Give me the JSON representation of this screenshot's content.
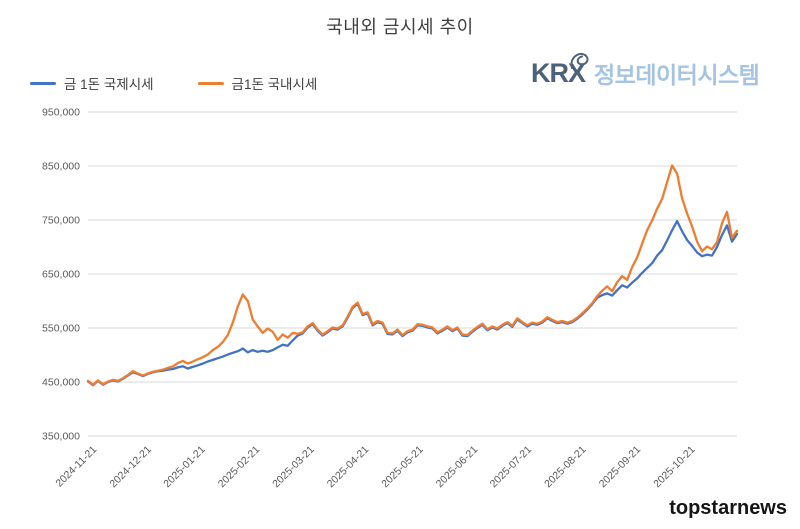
{
  "title": "국내외 금시세 추이",
  "legend": {
    "items": [
      {
        "label": "금 1돈 국제시세",
        "color": "#4472C4"
      },
      {
        "label": "금1돈 국내시세",
        "color": "#ED7D31"
      }
    ]
  },
  "logo": {
    "brand": "KRX",
    "suffix": "정보데이터시스템",
    "brand_color": "#4e617a",
    "suffix_color": "#a5c4e1",
    "loop_icon": "krx-ribbon-loop"
  },
  "watermark": "topstarnews",
  "chart_data": {
    "type": "line",
    "title": "국내외 금시세 추이",
    "xlabel": "",
    "ylabel": "",
    "ylim": [
      350000,
      950000
    ],
    "grid": "horizontal",
    "grid_color": "#d9d9d9",
    "legend_position": "top-left",
    "y_ticks": [
      950000,
      850000,
      750000,
      650000,
      550000,
      450000,
      350000
    ],
    "y_tick_labels": [
      "950,000",
      "850,000",
      "750,000",
      "650,000",
      "550,000",
      "450,000",
      "350,000"
    ],
    "x_tick_labels": [
      "2024-11-21",
      "2024-12-21",
      "2025-01-21",
      "2025-02-21",
      "2025-03-21",
      "2025-04-21",
      "2025-05-21",
      "2025-06-21",
      "2025-07-21",
      "2025-08-21",
      "2025-09-21",
      "2025-10-21"
    ],
    "x_tick_positions": [
      0.008,
      0.092,
      0.175,
      0.259,
      0.343,
      0.427,
      0.511,
      0.595,
      0.678,
      0.762,
      0.846,
      0.93
    ],
    "value_unit": "KRW",
    "series": [
      {
        "name": "금 1돈 국제시세",
        "color": "#4472C4",
        "values": [
          451000,
          444000,
          452000,
          445000,
          450000,
          453000,
          451000,
          456000,
          462000,
          468000,
          465000,
          461000,
          465000,
          468000,
          470000,
          471000,
          473000,
          474000,
          477000,
          479000,
          475000,
          478000,
          481000,
          484000,
          488000,
          491000,
          494000,
          497000,
          501000,
          504000,
          507000,
          512000,
          505000,
          509000,
          506000,
          508000,
          506000,
          509000,
          514000,
          519000,
          517000,
          527000,
          536000,
          540000,
          551000,
          557000,
          545000,
          536000,
          542000,
          549000,
          547000,
          553000,
          569000,
          587000,
          595000,
          574000,
          577000,
          555000,
          561000,
          558000,
          539000,
          538000,
          545000,
          535000,
          542000,
          545000,
          555000,
          554000,
          551000,
          549000,
          540000,
          545000,
          551000,
          544000,
          549000,
          536000,
          535000,
          543000,
          550000,
          556000,
          546000,
          551000,
          547000,
          554000,
          559000,
          552000,
          566000,
          559000,
          553000,
          558000,
          556000,
          560000,
          568000,
          563000,
          559000,
          561000,
          558000,
          561000,
          567000,
          575000,
          584000,
          594000,
          606000,
          611000,
          614000,
          610000,
          620000,
          629000,
          625000,
          634000,
          642000,
          652000,
          661000,
          670000,
          684000,
          694000,
          712000,
          731000,
          748000,
          729000,
          713000,
          702000,
          690000,
          683000,
          686000,
          684000,
          700000,
          722000,
          740000,
          710000,
          724000
        ]
      },
      {
        "name": "금1돈 국내시세",
        "color": "#ED7D31",
        "values": [
          452000,
          445000,
          453000,
          446000,
          451000,
          454000,
          452000,
          457000,
          463000,
          470000,
          466000,
          462000,
          466000,
          469000,
          471000,
          473000,
          476000,
          479000,
          485000,
          489000,
          484000,
          488000,
          492000,
          496000,
          501000,
          509000,
          515000,
          524000,
          537000,
          560000,
          590000,
          612000,
          600000,
          566000,
          553000,
          541000,
          549000,
          543000,
          528000,
          538000,
          532000,
          541000,
          539000,
          542000,
          553000,
          559000,
          547000,
          538000,
          544000,
          551000,
          549000,
          555000,
          571000,
          589000,
          597000,
          576000,
          579000,
          557000,
          563000,
          560000,
          541000,
          540000,
          547000,
          537000,
          544000,
          547000,
          557000,
          556000,
          553000,
          551000,
          542000,
          547000,
          553000,
          546000,
          551000,
          538000,
          537000,
          545000,
          552000,
          558000,
          548000,
          553000,
          549000,
          556000,
          561000,
          554000,
          568000,
          561000,
          555000,
          560000,
          558000,
          562000,
          570000,
          565000,
          561000,
          563000,
          560000,
          563000,
          569000,
          577000,
          586000,
          596000,
          609000,
          619000,
          627000,
          618000,
          635000,
          646000,
          639000,
          663000,
          681000,
          706000,
          731000,
          749000,
          771000,
          789000,
          820000,
          851000,
          836000,
          790000,
          762000,
          738000,
          710000,
          692000,
          701000,
          696000,
          709000,
          744000,
          765000,
          717000,
          730000
        ]
      }
    ]
  }
}
